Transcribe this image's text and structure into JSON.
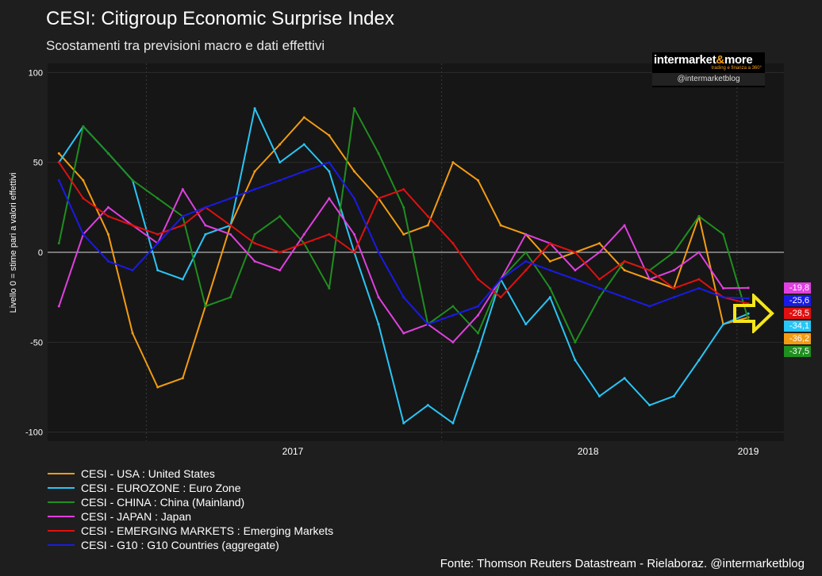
{
  "header": {
    "title": "CESI: Citigroup Economic Surprise Index",
    "subtitle": "Scostamenti tra previsioni macro e dati effettivi"
  },
  "logo": {
    "name_part1": "intermarket",
    "name_amp": "&",
    "name_part2": "more",
    "tagline": "trading e finanza a 360°",
    "handle": "@intermarketblog"
  },
  "source": "Fonte: Thomson Reuters Datastream - Rielaboraz. @intermarketblog",
  "colors": {
    "usa": "#f39c12",
    "eurozone": "#29c5f6",
    "china": "#1f8f1f",
    "japan": "#e040e0",
    "emerging": "#e01010",
    "g10": "#1a1ae6",
    "arrow": "#f5e61a"
  },
  "badges": [
    {
      "label": "-19,8",
      "bg": "#e040e0",
      "fg": "#ffffff"
    },
    {
      "label": "-25,6",
      "bg": "#1a1ae6",
      "fg": "#ffffff"
    },
    {
      "label": "-28,5",
      "bg": "#e01010",
      "fg": "#ffffff"
    },
    {
      "label": "-34,1",
      "bg": "#29c5f6",
      "fg": "#ffffff"
    },
    {
      "label": "-36,2",
      "bg": "#f39c12",
      "fg": "#ffffff"
    },
    {
      "label": "-37,5",
      "bg": "#1f8f1f",
      "fg": "#ffffff"
    }
  ],
  "chart_data": {
    "type": "line",
    "title": "CESI: Citigroup Economic Surprise Index",
    "subtitle": "Scostamenti tra previsioni macro e dati effettivi",
    "xlabel": "",
    "ylabel": "Livello 0 = stime pari a valori effettivi",
    "ylim": [
      -105,
      105
    ],
    "xlim": [
      "2016-09-01",
      "2019-02-28"
    ],
    "yticks": [
      100,
      50,
      0,
      -50,
      -100
    ],
    "xticks": [
      "2017",
      "2018",
      "2019"
    ],
    "grid": true,
    "legend_position": "bottom-left",
    "x": [
      "2016-09",
      "2016-10",
      "2016-11",
      "2016-12",
      "2017-01",
      "2017-02",
      "2017-03",
      "2017-04",
      "2017-05",
      "2017-06",
      "2017-07",
      "2017-08",
      "2017-09",
      "2017-10",
      "2017-11",
      "2017-12",
      "2018-01",
      "2018-02",
      "2018-03",
      "2018-04",
      "2018-05",
      "2018-06",
      "2018-07",
      "2018-08",
      "2018-09",
      "2018-10",
      "2018-11",
      "2018-12",
      "2019-01"
    ],
    "series": [
      {
        "name": "CESI - USA : United States",
        "values": [
          55,
          40,
          10,
          -45,
          -75,
          -70,
          -30,
          15,
          45,
          60,
          75,
          65,
          45,
          30,
          10,
          15,
          50,
          40,
          15,
          10,
          -5,
          0,
          5,
          -10,
          -15,
          -20,
          20,
          -40,
          -36.2
        ]
      },
      {
        "name": "CESI - EUROZONE : Euro Zone",
        "values": [
          50,
          70,
          55,
          40,
          -10,
          -15,
          10,
          15,
          80,
          50,
          60,
          45,
          0,
          -40,
          -95,
          -85,
          -95,
          -55,
          -15,
          -40,
          -25,
          -60,
          -80,
          -70,
          -85,
          -80,
          -60,
          -40,
          -34.1
        ]
      },
      {
        "name": "CESI - CHINA : China (Mainland)",
        "values": [
          5,
          70,
          55,
          40,
          30,
          20,
          -30,
          -25,
          10,
          20,
          5,
          -20,
          80,
          55,
          25,
          -40,
          -30,
          -45,
          -15,
          0,
          -20,
          -50,
          -25,
          -5,
          -10,
          0,
          20,
          10,
          -37.5
        ]
      },
      {
        "name": "CESI - JAPAN : Japan",
        "values": [
          -30,
          10,
          25,
          15,
          5,
          35,
          15,
          10,
          -5,
          -10,
          10,
          30,
          10,
          -25,
          -45,
          -40,
          -50,
          -35,
          -15,
          10,
          5,
          -10,
          0,
          15,
          -15,
          -10,
          0,
          -20,
          -19.8
        ]
      },
      {
        "name": "CESI - EMERGING MARKETS : Emerging Markets",
        "values": [
          50,
          30,
          20,
          15,
          10,
          15,
          25,
          15,
          5,
          0,
          5,
          10,
          0,
          30,
          35,
          20,
          5,
          -15,
          -25,
          -10,
          5,
          0,
          -15,
          -5,
          -10,
          -20,
          -15,
          -25,
          -28.5
        ]
      },
      {
        "name": "CESI - G10 : G10 Countries (aggregate)",
        "values": [
          40,
          10,
          -5,
          -10,
          5,
          20,
          25,
          30,
          35,
          40,
          45,
          50,
          30,
          0,
          -25,
          -40,
          -35,
          -30,
          -15,
          -5,
          -10,
          -15,
          -20,
          -25,
          -30,
          -25,
          -20,
          -25,
          -25.6
        ]
      }
    ]
  }
}
